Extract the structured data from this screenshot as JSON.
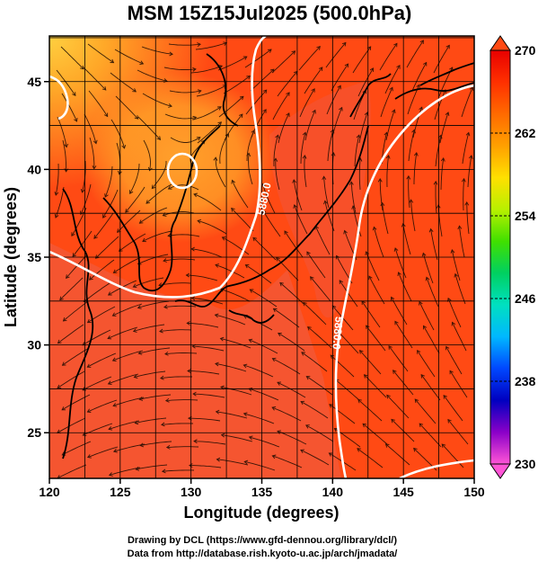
{
  "title": "MSM 15Z15Jul2025 (500.0hPa)",
  "xlabel": "Longitude (degrees)",
  "ylabel": "Latitude  (degrees)",
  "credits": {
    "line1": "Drawing by DCL (https://www.gfd-dennou.org/library/dcl/)",
    "line2": "Data from http://database.rish.kyoto-u.ac.jp/arch/jmadata/"
  },
  "chart_data": {
    "type": "heatmap",
    "field": "temperature (shaded), wind (streamlines), geopotential height (contours)",
    "xlim": [
      120,
      150
    ],
    "ylim": [
      22.4,
      47.6
    ],
    "xticks": [
      120,
      125,
      130,
      135,
      140,
      145,
      150
    ],
    "yticks": [
      25,
      30,
      35,
      40,
      45
    ],
    "colorbar": {
      "min": 230,
      "max": 270,
      "labels": [
        270,
        262,
        254,
        246,
        238,
        230
      ],
      "colors": [
        "#ff55d6",
        "#8a00c8",
        "#0000c0",
        "#0047ff",
        "#00b8ff",
        "#00e0c0",
        "#00d060",
        "#40e000",
        "#b8f000",
        "#ffe000",
        "#ffa000",
        "#ff6a00",
        "#ff3000",
        "#e80000"
      ]
    },
    "contour_labels": [
      "5880.0",
      "5880.0",
      "5880.0"
    ],
    "grid": true
  },
  "colors": {
    "field_base": "#ff4a14",
    "field_warm": "#f25a3a",
    "field_cool": "#ff8a20",
    "field_coolest": "#ffc030",
    "contour": "#ffffff",
    "coast": "#000000"
  }
}
